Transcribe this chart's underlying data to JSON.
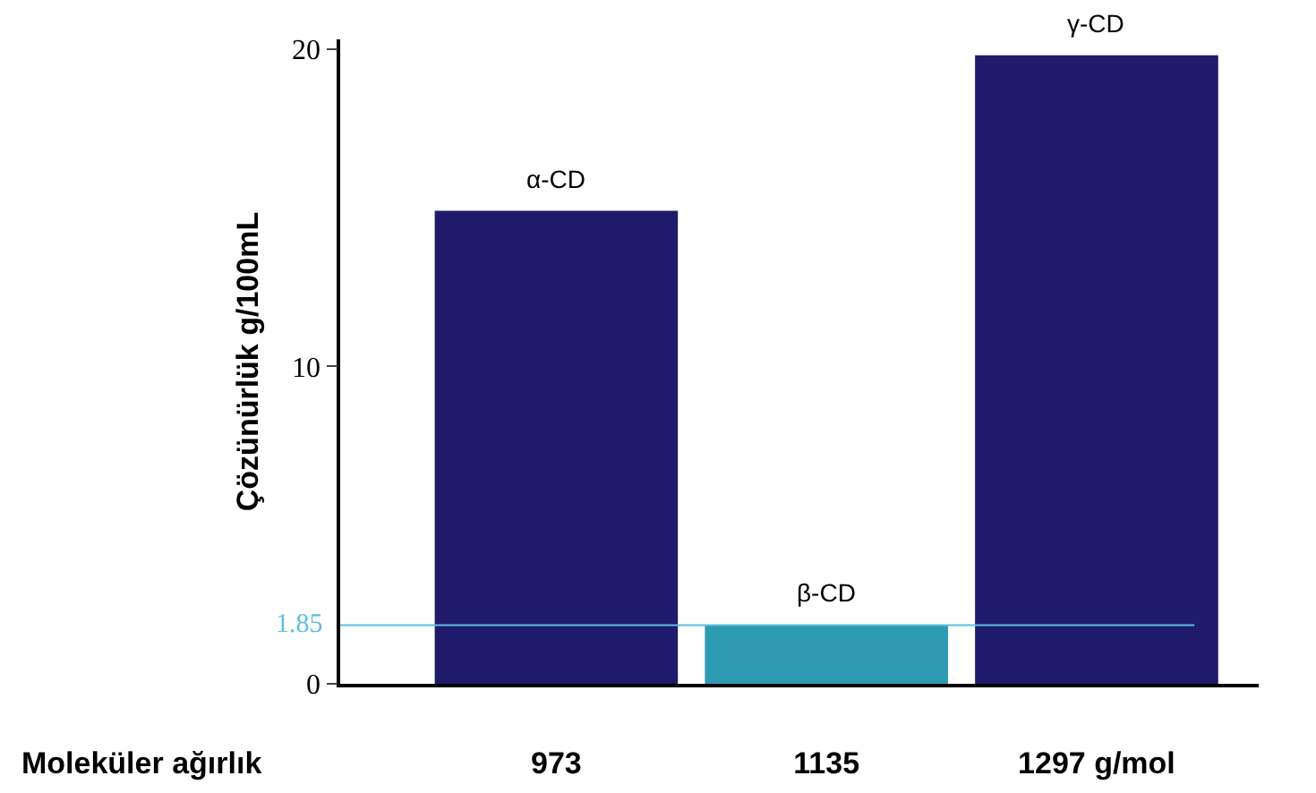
{
  "chart_data": {
    "type": "bar",
    "ylabel": "Çözünürlük g/100mL",
    "categories": [
      "973",
      "1135",
      "1297 g/mol"
    ],
    "values": [
      14.9,
      1.85,
      19.8
    ],
    "colors": [
      "#1f1a6b",
      "#2f9bb3",
      "#1f1a6b"
    ],
    "ylim": [
      0,
      20.3
    ],
    "yticks": [
      0,
      10,
      20
    ],
    "grid": false,
    "annotations": [
      "Moleküler ağırlık",
      {
        "text": "α-CD",
        "x": "973",
        "y": 14.9
      },
      {
        "text": "β-CD",
        "x": "1135",
        "y": 1.85
      },
      {
        "text": "γ-CD",
        "x": "1297 g/mol",
        "y": 19.8
      }
    ],
    "ref_lines": [
      {
        "axis": "y",
        "value": 1.85,
        "label": "1.85",
        "color": "#5bc0de",
        "line_style": "solid"
      }
    ]
  }
}
